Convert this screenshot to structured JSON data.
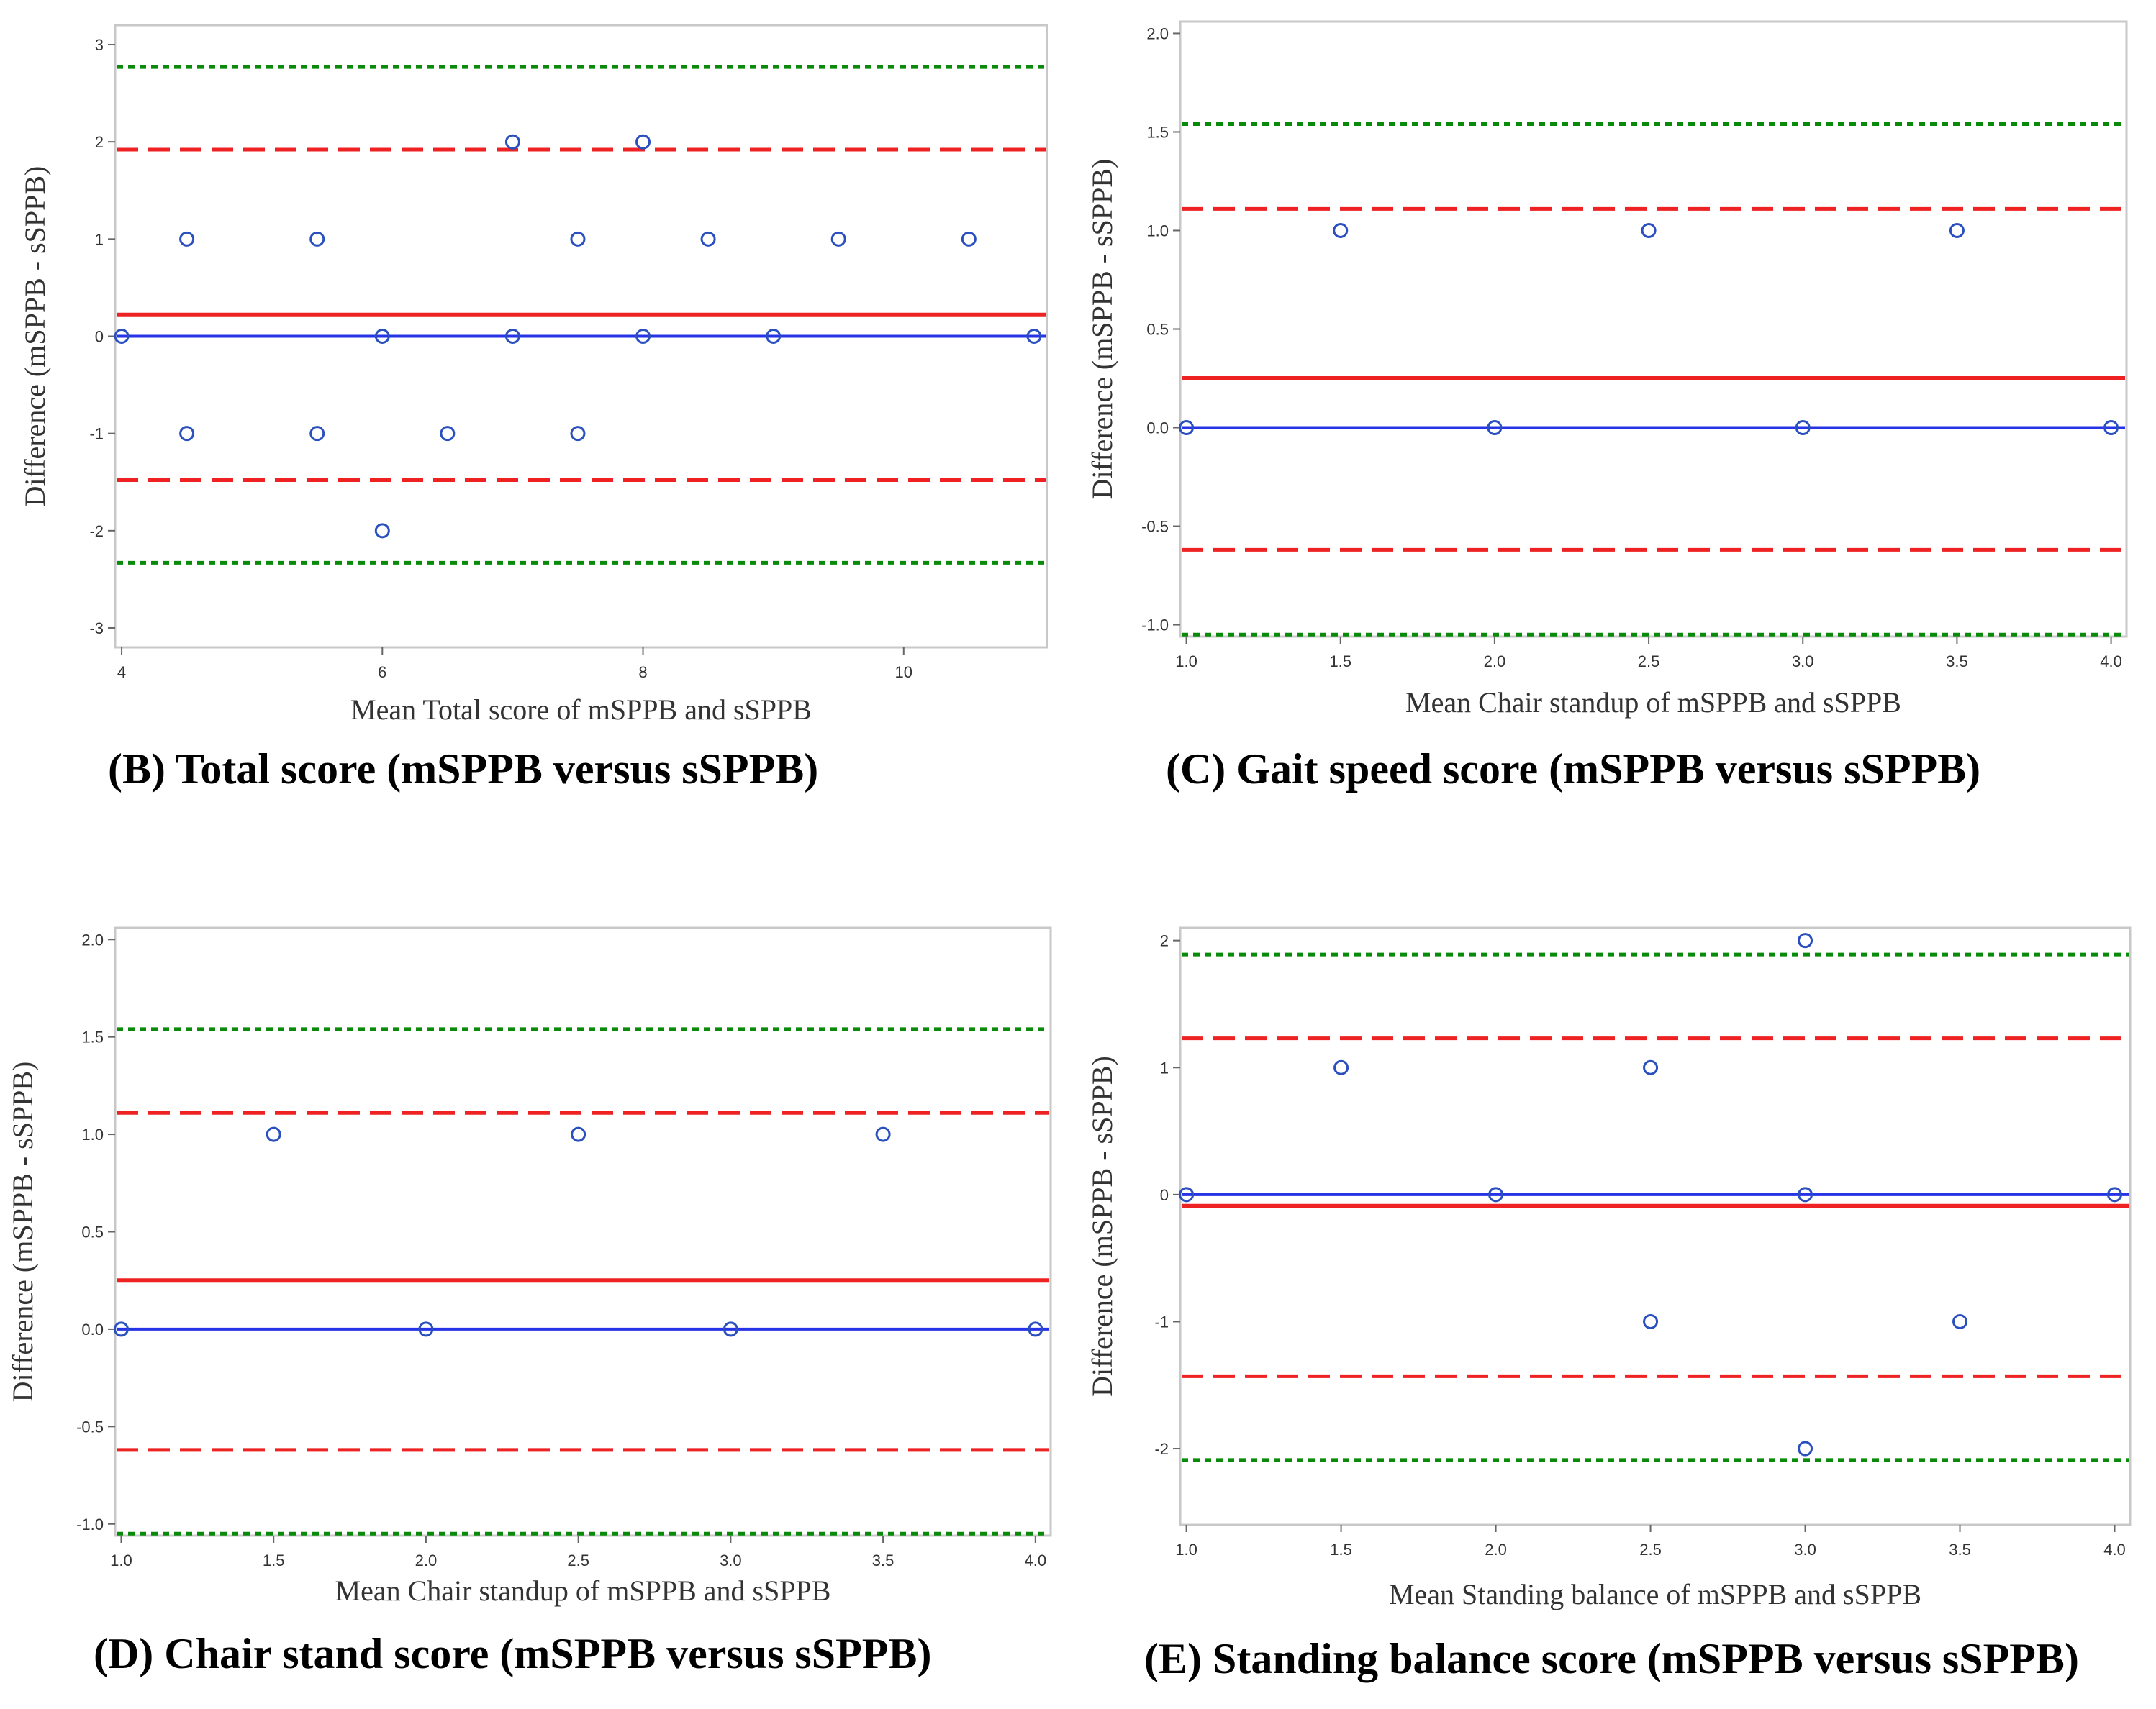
{
  "colors": {
    "background": "#ffffff",
    "frame": "#c8c8c8",
    "zero_line": "#2633e6",
    "mean_line": "#ee2222",
    "loa_line": "#ee2222",
    "outer_line": "#0a8a0a",
    "points": "#2a4fbf",
    "text": "#333333"
  },
  "chart_data": [
    {
      "id": "B",
      "type": "scatter",
      "caption": "(B) Total score (mSPPB versus sSPPB)",
      "xlabel": "Mean Total score of mSPPB and sSPPB",
      "ylabel": "Difference (mSPPB - sSPPB)",
      "xlim": [
        3.95,
        11.1
      ],
      "ylim": [
        -3.2,
        3.2
      ],
      "xticks": [
        4,
        6,
        8,
        10
      ],
      "xtick_labels": [
        "4",
        "6",
        "8",
        "10"
      ],
      "yticks": [
        -3,
        -2,
        -1,
        0,
        1,
        2,
        3
      ],
      "ytick_labels": [
        "-3",
        "-2",
        "-1",
        "0",
        "1",
        "2",
        "3"
      ],
      "reference_lines": [
        {
          "kind": "zero",
          "value": 0
        },
        {
          "kind": "mean",
          "value": 0.22
        },
        {
          "kind": "loa",
          "value": 1.92
        },
        {
          "kind": "loa",
          "value": -1.48
        },
        {
          "kind": "outer",
          "value": 2.77
        },
        {
          "kind": "outer",
          "value": -2.33
        }
      ],
      "points": [
        {
          "x": 4,
          "y": 0
        },
        {
          "x": 4.5,
          "y": 1
        },
        {
          "x": 4.5,
          "y": -1
        },
        {
          "x": 5.5,
          "y": 1
        },
        {
          "x": 5.5,
          "y": -1
        },
        {
          "x": 6,
          "y": 0
        },
        {
          "x": 6,
          "y": -2
        },
        {
          "x": 6.5,
          "y": -1
        },
        {
          "x": 7,
          "y": 2
        },
        {
          "x": 7,
          "y": 0
        },
        {
          "x": 7.5,
          "y": 1
        },
        {
          "x": 7.5,
          "y": -1
        },
        {
          "x": 8,
          "y": 2
        },
        {
          "x": 8,
          "y": 0
        },
        {
          "x": 8.5,
          "y": 1
        },
        {
          "x": 9,
          "y": 0
        },
        {
          "x": 9.5,
          "y": 1
        },
        {
          "x": 10.5,
          "y": 1
        },
        {
          "x": 11,
          "y": 0
        }
      ]
    },
    {
      "id": "C",
      "type": "scatter",
      "caption": "(C) Gait speed score (mSPPB versus sSPPB)",
      "xlabel": "Mean Chair standup of mSPPB and sSPPB",
      "ylabel": "Difference (mSPPB - sSPPB)",
      "xlim": [
        0.98,
        4.05
      ],
      "ylim": [
        -1.06,
        2.06
      ],
      "xticks": [
        1,
        1.5,
        2,
        2.5,
        3,
        3.5,
        4
      ],
      "xtick_labels": [
        "1.0",
        "1.5",
        "2.0",
        "2.5",
        "3.0",
        "3.5",
        "4.0"
      ],
      "yticks": [
        -1,
        -0.5,
        0,
        0.5,
        1,
        1.5,
        2
      ],
      "ytick_labels": [
        "-1.0",
        "-0.5",
        "0.0",
        "0.5",
        "1.0",
        "1.5",
        "2.0"
      ],
      "reference_lines": [
        {
          "kind": "zero",
          "value": 0
        },
        {
          "kind": "mean",
          "value": 0.25
        },
        {
          "kind": "loa",
          "value": 1.11
        },
        {
          "kind": "loa",
          "value": -0.62
        },
        {
          "kind": "outer",
          "value": 1.54
        },
        {
          "kind": "outer",
          "value": -1.05
        }
      ],
      "points": [
        {
          "x": 1,
          "y": 0
        },
        {
          "x": 1.5,
          "y": 1
        },
        {
          "x": 2,
          "y": 0
        },
        {
          "x": 2.5,
          "y": 1
        },
        {
          "x": 3,
          "y": 0
        },
        {
          "x": 3.5,
          "y": 1
        },
        {
          "x": 4,
          "y": 0
        }
      ]
    },
    {
      "id": "D",
      "type": "scatter",
      "caption": "(D) Chair stand score (mSPPB versus sSPPB)",
      "xlabel": "Mean Chair standup of mSPPB and sSPPB",
      "ylabel": "Difference (mSPPB - sSPPB)",
      "xlim": [
        0.98,
        4.05
      ],
      "ylim": [
        -1.06,
        2.06
      ],
      "xticks": [
        1,
        1.5,
        2,
        2.5,
        3,
        3.5,
        4
      ],
      "xtick_labels": [
        "1.0",
        "1.5",
        "2.0",
        "2.5",
        "3.0",
        "3.5",
        "4.0"
      ],
      "yticks": [
        -1,
        -0.5,
        0,
        0.5,
        1,
        1.5,
        2
      ],
      "ytick_labels": [
        "-1.0",
        "-0.5",
        "0.0",
        "0.5",
        "1.0",
        "1.5",
        "2.0"
      ],
      "reference_lines": [
        {
          "kind": "zero",
          "value": 0
        },
        {
          "kind": "mean",
          "value": 0.25
        },
        {
          "kind": "loa",
          "value": 1.11
        },
        {
          "kind": "loa",
          "value": -0.62
        },
        {
          "kind": "outer",
          "value": 1.54
        },
        {
          "kind": "outer",
          "value": -1.05
        }
      ],
      "points": [
        {
          "x": 1,
          "y": 0
        },
        {
          "x": 1.5,
          "y": 1
        },
        {
          "x": 2,
          "y": 0
        },
        {
          "x": 2.5,
          "y": 1
        },
        {
          "x": 3,
          "y": 0
        },
        {
          "x": 3.5,
          "y": 1
        },
        {
          "x": 4,
          "y": 0
        }
      ]
    },
    {
      "id": "E",
      "type": "scatter",
      "caption": "(E) Standing balance score (mSPPB versus sSPPB)",
      "xlabel": "Mean Standing balance of mSPPB and sSPPB",
      "ylabel": "Difference (mSPPB - sSPPB)",
      "xlim": [
        0.98,
        4.05
      ],
      "ylim": [
        -2.6,
        2.1
      ],
      "xticks": [
        1,
        1.5,
        2,
        2.5,
        3,
        3.5,
        4
      ],
      "xtick_labels": [
        "1.0",
        "1.5",
        "2.0",
        "2.5",
        "3.0",
        "3.5",
        "4.0"
      ],
      "yticks": [
        -2,
        -1,
        0,
        1,
        2
      ],
      "ytick_labels": [
        "-2",
        "-1",
        "0",
        "1",
        "2"
      ],
      "reference_lines": [
        {
          "kind": "zero",
          "value": 0
        },
        {
          "kind": "mean",
          "value": -0.09
        },
        {
          "kind": "loa",
          "value": 1.23
        },
        {
          "kind": "loa",
          "value": -1.43
        },
        {
          "kind": "outer",
          "value": 1.89
        },
        {
          "kind": "outer",
          "value": -2.09
        }
      ],
      "points": [
        {
          "x": 1,
          "y": 0
        },
        {
          "x": 1.5,
          "y": 1
        },
        {
          "x": 2,
          "y": 0
        },
        {
          "x": 2.5,
          "y": 1
        },
        {
          "x": 2.5,
          "y": -1
        },
        {
          "x": 3,
          "y": 2
        },
        {
          "x": 3,
          "y": 0
        },
        {
          "x": 3,
          "y": -2
        },
        {
          "x": 3.5,
          "y": -1
        },
        {
          "x": 4,
          "y": 0
        }
      ]
    }
  ]
}
